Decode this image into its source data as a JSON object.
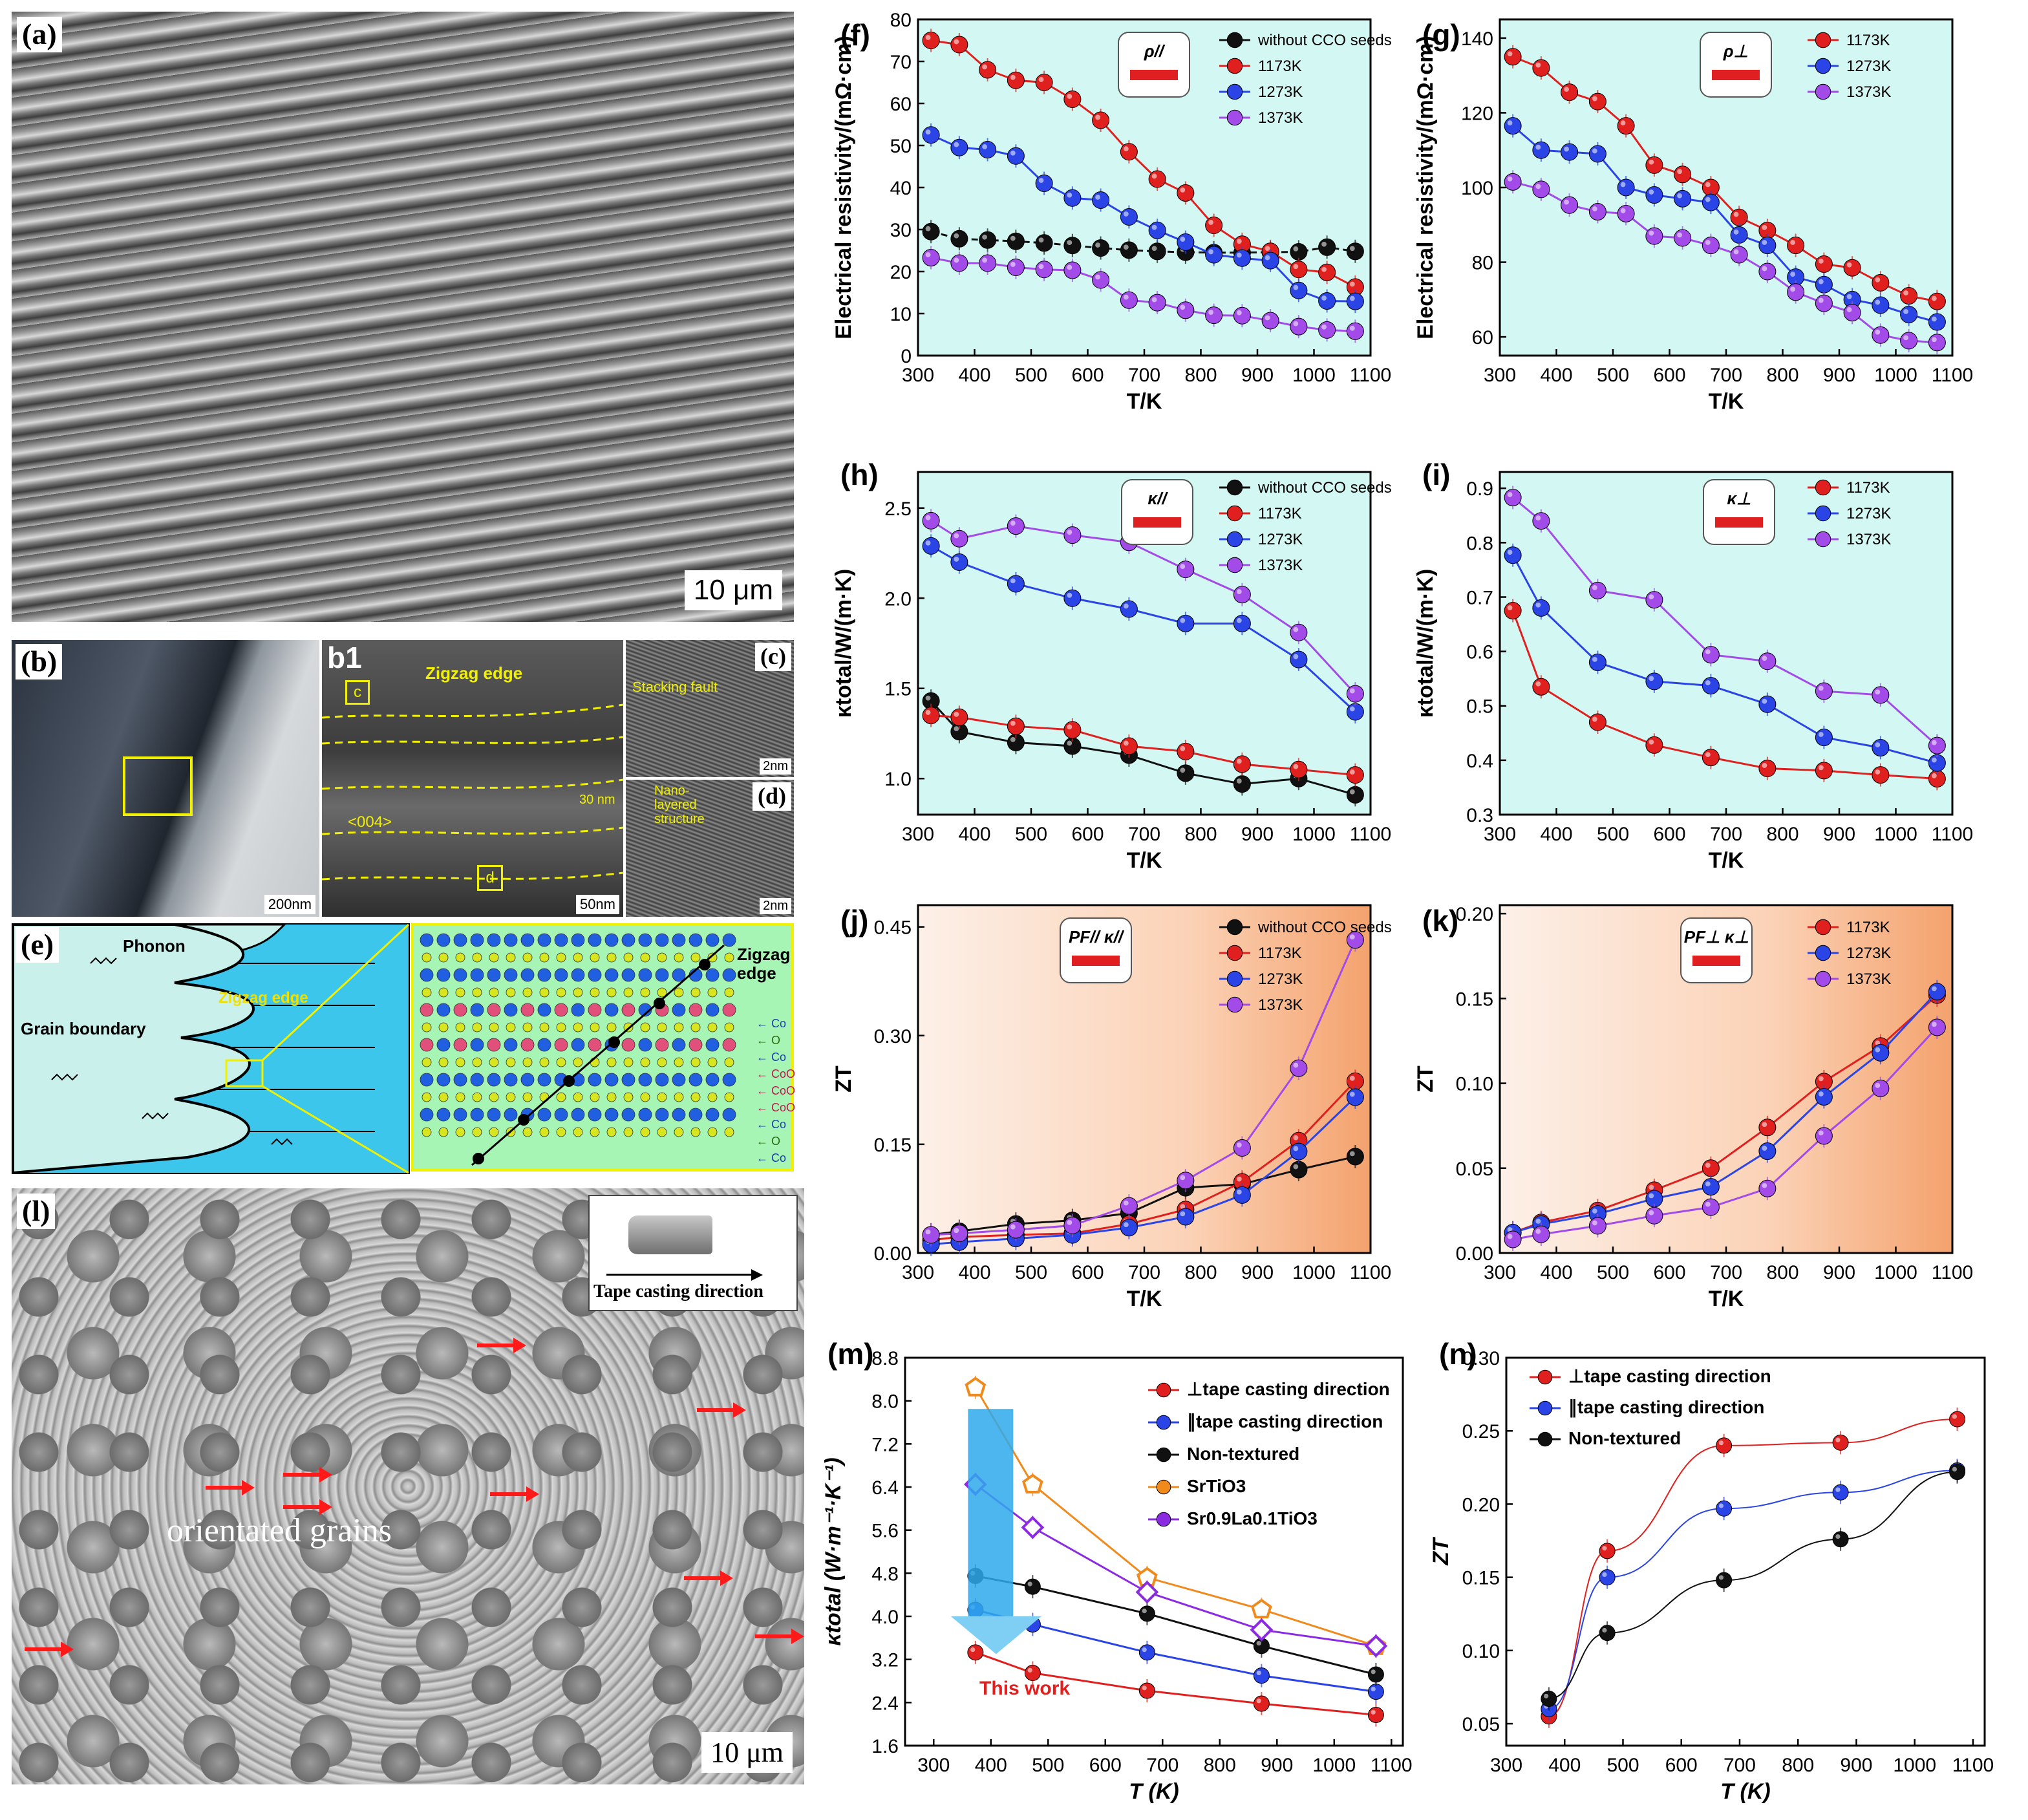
{
  "panel_labels": {
    "a": "(a)",
    "b": "(b)",
    "b1": "b1",
    "c": "(c)",
    "d": "(d)",
    "e": "(e)",
    "f": "(f)",
    "g": "(g)",
    "h": "(h)",
    "i": "(i)",
    "j": "(j)",
    "k": "(k)",
    "l": "(l)",
    "m": "(m)",
    "n": "(n)"
  },
  "micrographs": {
    "a_scale": "10 μm",
    "b_scale": "200nm",
    "b1_scale": "50nm",
    "b1_zigzag": "Zigzag edge",
    "b1_box_c": "c",
    "b1_box_d": "d",
    "b1_direction": "<004>",
    "b1_thickness": "30 nm",
    "c_text": "Stacking fault",
    "c_scale": "2nm",
    "d_text": "Nano-layered structure",
    "d_scale": "2nm",
    "l_scale": "10 μm",
    "l_caption": "orientated grains",
    "l_inset": "Tape casting direction"
  },
  "schematic_e": {
    "phonon": "Phonon",
    "zigzag": "Zigzag edge",
    "grain_boundary": "Grain boundary",
    "zigzag_edge": "Zigzag edge",
    "rows": [
      "Co",
      "O",
      "Co",
      "CoO",
      "CoO",
      "CoO",
      "Co",
      "O",
      "Co"
    ]
  },
  "colors": {
    "black": "#111111",
    "red": "#e0201e",
    "blue": "#2a44e6",
    "purple": "#a24be8",
    "orange": "#f08a1c",
    "violet": "#8a2be2",
    "cyan_bg": "#d3f7f2"
  },
  "chart_data": [
    {
      "id": "f",
      "type": "line",
      "xlabel": "T/K",
      "ylabel": "Electrical resistivity/(mΩ·cm)",
      "xlim": [
        300,
        1100
      ],
      "ylim": [
        0,
        80
      ],
      "xticks": [
        300,
        400,
        500,
        600,
        700,
        800,
        900,
        1000,
        1100
      ],
      "yticks": [
        0,
        10,
        20,
        30,
        40,
        50,
        60,
        70,
        80
      ],
      "inset": "ρ//",
      "x": [
        323,
        373,
        423,
        473,
        523,
        573,
        623,
        673,
        723,
        773,
        823,
        873,
        923,
        973,
        1023,
        1073
      ],
      "series": [
        {
          "name": "without CCO seeds",
          "color": "#111111",
          "values": [
            29.5,
            27.8,
            27.5,
            27.2,
            26.8,
            26.2,
            25.6,
            25.1,
            24.8,
            24.6,
            24.5,
            24.5,
            24.6,
            24.7,
            25.8,
            24.8
          ]
        },
        {
          "name": "1173K",
          "color": "#e0201e",
          "values": [
            75,
            74,
            68,
            65.5,
            65,
            61,
            56,
            48.5,
            42,
            38.7,
            31,
            26.5,
            24.8,
            20.5,
            19.8,
            16.3
          ]
        },
        {
          "name": "1273K",
          "color": "#2a44e6",
          "values": [
            52.5,
            49.5,
            49,
            47.5,
            41,
            37.5,
            37,
            33,
            29.8,
            27,
            24,
            23.2,
            22.6,
            15.5,
            13,
            12.9
          ]
        },
        {
          "name": "1373K",
          "color": "#a24be8",
          "values": [
            23.3,
            22,
            22,
            21,
            20.5,
            20.3,
            18,
            13.2,
            12.6,
            10.8,
            9.6,
            9.5,
            8.3,
            6.9,
            6.1,
            5.8
          ]
        }
      ]
    },
    {
      "id": "g",
      "type": "line",
      "xlabel": "T/K",
      "ylabel": "Electrical resistivity/(mΩ·cm)",
      "xlim": [
        300,
        1100
      ],
      "ylim": [
        55,
        145
      ],
      "xticks": [
        300,
        400,
        500,
        600,
        700,
        800,
        900,
        1000,
        1100
      ],
      "yticks": [
        60,
        80,
        100,
        120,
        140
      ],
      "inset": "ρ⊥",
      "x": [
        323,
        373,
        423,
        473,
        523,
        573,
        623,
        673,
        723,
        773,
        823,
        873,
        923,
        973,
        1023,
        1073
      ],
      "series": [
        {
          "name": "1173K",
          "color": "#e0201e",
          "values": [
            135,
            132,
            125.5,
            123,
            116.5,
            106,
            103.5,
            100,
            92,
            88.5,
            84.5,
            79.5,
            78.5,
            74.5,
            71,
            69.5
          ]
        },
        {
          "name": "1273K",
          "color": "#2a44e6",
          "values": [
            116.5,
            110,
            109.5,
            109,
            100,
            98,
            97,
            96,
            87.3,
            84.5,
            76,
            74,
            70,
            68.5,
            66,
            64
          ]
        },
        {
          "name": "1373K",
          "color": "#a24be8",
          "values": [
            101.5,
            99.5,
            95.3,
            93.5,
            93,
            87,
            86.5,
            84.5,
            82,
            77.5,
            72,
            69,
            66.5,
            60.5,
            59,
            58.5
          ]
        }
      ]
    },
    {
      "id": "h",
      "type": "line",
      "xlabel": "T/K",
      "ylabel": "κtotal/W/(m·K)",
      "xlim": [
        300,
        1100
      ],
      "ylim": [
        0.8,
        2.7
      ],
      "xticks": [
        300,
        400,
        500,
        600,
        700,
        800,
        900,
        1000,
        1100
      ],
      "yticks": [
        1.0,
        1.5,
        2.0,
        2.5
      ],
      "inset": "κ//",
      "x": [
        323,
        373,
        473,
        573,
        673,
        773,
        873,
        973,
        1073
      ],
      "series": [
        {
          "name": "without CCO seeds",
          "color": "#111111",
          "values": [
            1.43,
            1.26,
            1.2,
            1.18,
            1.13,
            1.03,
            0.97,
            1.0,
            0.91
          ]
        },
        {
          "name": "1173K",
          "color": "#e0201e",
          "values": [
            1.35,
            1.34,
            1.29,
            1.27,
            1.18,
            1.15,
            1.08,
            1.05,
            1.02
          ]
        },
        {
          "name": "1273K",
          "color": "#2a44e6",
          "values": [
            2.29,
            2.2,
            2.08,
            2.0,
            1.94,
            1.86,
            1.86,
            1.66,
            1.37
          ]
        },
        {
          "name": "1373K",
          "color": "#a24be8",
          "values": [
            2.43,
            2.33,
            2.4,
            2.35,
            2.31,
            2.16,
            2.02,
            1.81,
            1.47
          ]
        }
      ]
    },
    {
      "id": "i",
      "type": "line",
      "xlabel": "T/K",
      "ylabel": "κtotal/W/(m·K)",
      "xlim": [
        300,
        1100
      ],
      "ylim": [
        0.3,
        0.93
      ],
      "xticks": [
        300,
        400,
        500,
        600,
        700,
        800,
        900,
        1000,
        1100
      ],
      "yticks": [
        0.3,
        0.4,
        0.5,
        0.6,
        0.7,
        0.8,
        0.9
      ],
      "inset": "κ⊥",
      "x": [
        323,
        373,
        473,
        573,
        673,
        773,
        873,
        973,
        1073
      ],
      "series": [
        {
          "name": "1173K",
          "color": "#e0201e",
          "values": [
            0.675,
            0.535,
            0.47,
            0.428,
            0.405,
            0.385,
            0.381,
            0.373,
            0.366
          ]
        },
        {
          "name": "1273K",
          "color": "#2a44e6",
          "values": [
            0.777,
            0.68,
            0.58,
            0.545,
            0.537,
            0.503,
            0.442,
            0.423,
            0.395
          ]
        },
        {
          "name": "1373K",
          "color": "#a24be8",
          "values": [
            0.883,
            0.84,
            0.712,
            0.695,
            0.594,
            0.582,
            0.527,
            0.52,
            0.427
          ]
        }
      ]
    },
    {
      "id": "j",
      "type": "line",
      "xlabel": "T/K",
      "ylabel": "ZT",
      "xlim": [
        300,
        1100
      ],
      "ylim": [
        0,
        0.48
      ],
      "xticks": [
        300,
        400,
        500,
        600,
        700,
        800,
        900,
        1000,
        1100
      ],
      "yticks": [
        0.0,
        0.15,
        0.3,
        0.45
      ],
      "inset": "PF// κ//",
      "x": [
        323,
        373,
        473,
        573,
        673,
        773,
        873,
        973,
        1073
      ],
      "series": [
        {
          "name": "without CCO seeds",
          "color": "#111111",
          "values": [
            0.025,
            0.03,
            0.04,
            0.045,
            0.055,
            0.09,
            0.095,
            0.115,
            0.133
          ]
        },
        {
          "name": "1173K",
          "color": "#e0201e",
          "values": [
            0.018,
            0.022,
            0.025,
            0.027,
            0.04,
            0.06,
            0.098,
            0.155,
            0.237
          ]
        },
        {
          "name": "1273K",
          "color": "#2a44e6",
          "values": [
            0.012,
            0.015,
            0.02,
            0.025,
            0.035,
            0.05,
            0.08,
            0.14,
            0.215
          ]
        },
        {
          "name": "1373K",
          "color": "#a24be8",
          "values": [
            0.025,
            0.027,
            0.032,
            0.038,
            0.065,
            0.1,
            0.145,
            0.255,
            0.432
          ]
        }
      ]
    },
    {
      "id": "k",
      "type": "line",
      "xlabel": "T/K",
      "ylabel": "ZT",
      "xlim": [
        300,
        1100
      ],
      "ylim": [
        0,
        0.205
      ],
      "xticks": [
        300,
        400,
        500,
        600,
        700,
        800,
        900,
        1000,
        1100
      ],
      "yticks": [
        0.0,
        0.05,
        0.1,
        0.15,
        0.2
      ],
      "inset": "PF⊥ κ⊥",
      "x": [
        323,
        373,
        473,
        573,
        673,
        773,
        873,
        973,
        1073
      ],
      "series": [
        {
          "name": "1173K",
          "color": "#e0201e",
          "values": [
            0.012,
            0.018,
            0.025,
            0.037,
            0.05,
            0.074,
            0.101,
            0.122,
            0.152
          ]
        },
        {
          "name": "1273K",
          "color": "#2a44e6",
          "values": [
            0.012,
            0.017,
            0.023,
            0.032,
            0.039,
            0.06,
            0.092,
            0.118,
            0.154
          ]
        },
        {
          "name": "1373K",
          "color": "#a24be8",
          "values": [
            0.008,
            0.011,
            0.016,
            0.022,
            0.027,
            0.038,
            0.069,
            0.097,
            0.133
          ]
        }
      ]
    },
    {
      "id": "m",
      "type": "line",
      "xlabel": "T (K)",
      "ylabel": "κtotal (W·m⁻¹·K⁻¹)",
      "xlim": [
        250,
        1120
      ],
      "ylim": [
        1.6,
        8.8
      ],
      "xticks": [
        300,
        400,
        500,
        600,
        700,
        800,
        900,
        1000,
        1100
      ],
      "yticks": [
        1.6,
        2.4,
        3.2,
        4.0,
        4.8,
        5.6,
        6.4,
        7.2,
        8.0,
        8.8
      ],
      "annotation": "This work",
      "x": [
        373,
        473,
        673,
        873,
        1073
      ],
      "series": [
        {
          "name": "⊥tape casting direction",
          "color": "#e0201e",
          "values": [
            3.33,
            2.95,
            2.62,
            2.38,
            2.17
          ]
        },
        {
          "name": "∥tape casting direction",
          "color": "#2a44e6",
          "values": [
            4.12,
            3.85,
            3.33,
            2.9,
            2.6
          ]
        },
        {
          "name": "Non-textured",
          "color": "#111111",
          "values": [
            4.75,
            4.55,
            4.05,
            3.45,
            2.92
          ]
        },
        {
          "name": "SrTiO3",
          "color": "#f08a1c",
          "values": [
            8.25,
            6.45,
            4.72,
            4.13,
            3.45
          ]
        },
        {
          "name": "Sr0.9La0.1TiO3",
          "color": "#8a2be2",
          "values": [
            6.45,
            5.65,
            4.45,
            3.75,
            3.45
          ]
        }
      ]
    },
    {
      "id": "n",
      "type": "line",
      "xlabel": "T (K)",
      "ylabel": "ZT",
      "xlim": [
        300,
        1120
      ],
      "ylim": [
        0.035,
        0.3
      ],
      "xticks": [
        300,
        400,
        500,
        600,
        700,
        800,
        900,
        1000,
        1100
      ],
      "yticks": [
        0.05,
        0.1,
        0.15,
        0.2,
        0.25,
        0.3
      ],
      "x": [
        373,
        473,
        673,
        873,
        1073
      ],
      "series": [
        {
          "name": "⊥tape casting direction",
          "color": "#e0201e",
          "values": [
            0.055,
            0.168,
            0.24,
            0.242,
            0.258
          ]
        },
        {
          "name": "∥tape casting direction",
          "color": "#2a44e6",
          "values": [
            0.06,
            0.15,
            0.197,
            0.208,
            0.223
          ]
        },
        {
          "name": "Non-textured",
          "color": "#111111",
          "values": [
            0.067,
            0.112,
            0.148,
            0.176,
            0.222
          ]
        }
      ]
    }
  ]
}
